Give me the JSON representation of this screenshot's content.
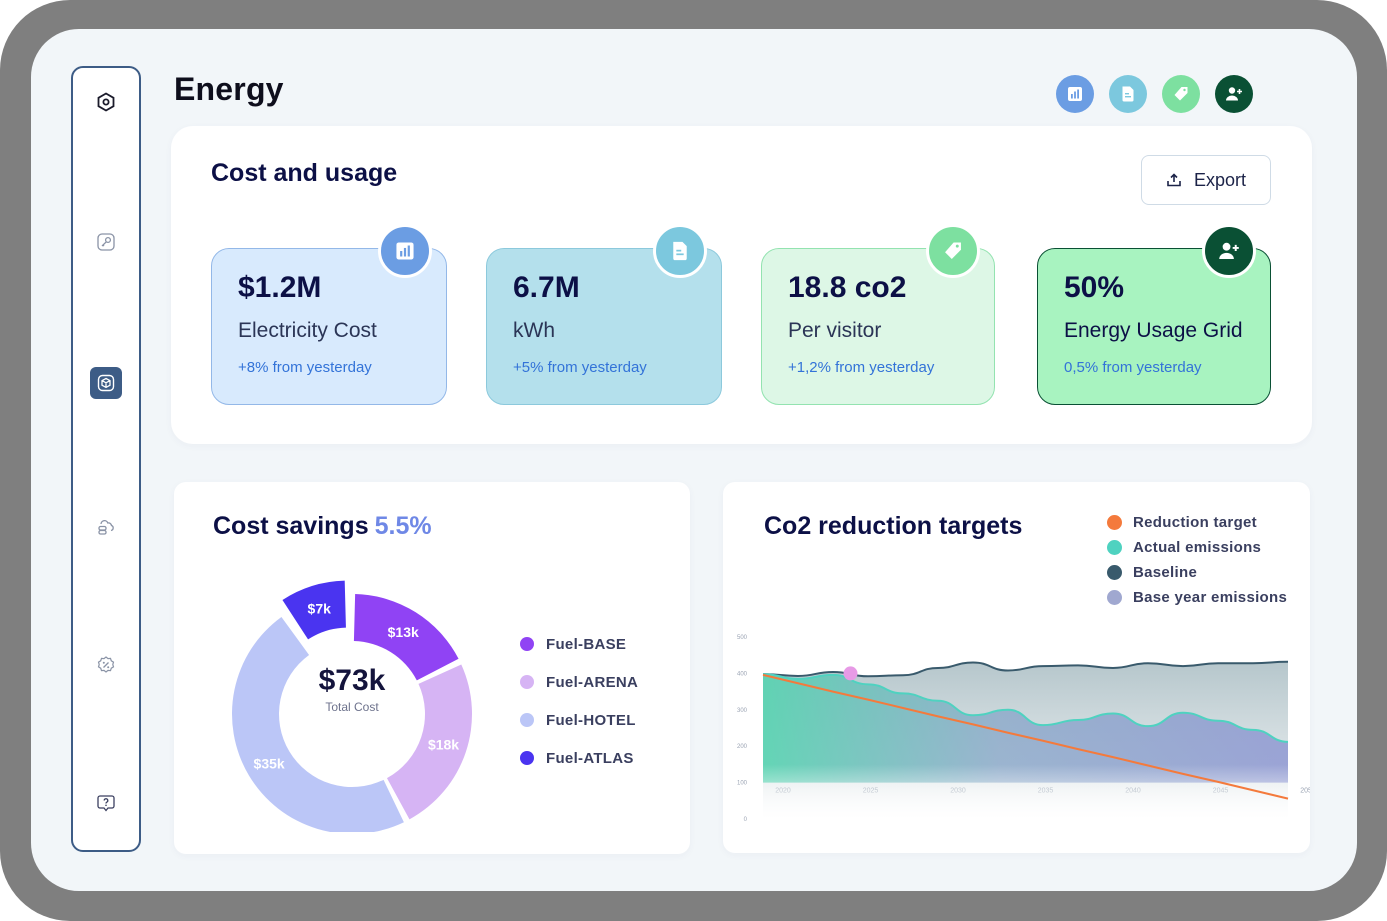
{
  "page": {
    "title": "Energy"
  },
  "sidebar": {
    "items": [
      {
        "name": "hexagon-logo-icon",
        "active": false
      },
      {
        "name": "key-icon",
        "active": false
      },
      {
        "name": "cube-icon",
        "active": true
      },
      {
        "name": "cloud-server-icon",
        "active": false
      },
      {
        "name": "percent-badge-icon",
        "active": false
      },
      {
        "name": "help-icon",
        "active": false
      }
    ]
  },
  "top_icons": [
    {
      "name": "bar-chart-icon",
      "color": "#6b9de3"
    },
    {
      "name": "document-icon",
      "color": "#7cc8de"
    },
    {
      "name": "tag-icon",
      "color": "#7de0a0"
    },
    {
      "name": "add-user-icon",
      "color": "#0a5034"
    }
  ],
  "cost_usage": {
    "title": "Cost and usage",
    "export_label": "Export",
    "cards": [
      {
        "value": "$1.2M",
        "label": "Electricity Cost",
        "delta": "+8% from yesterday",
        "bg": "#d8eafd",
        "border": "#93b8e8",
        "badge": "#6b9de3",
        "icon": "bar-chart-icon"
      },
      {
        "value": "6.7M",
        "label": "kWh",
        "delta": "+5% from yesterday",
        "bg": "#b4e0ec",
        "border": "#8cc9dc",
        "badge": "#7cc8de",
        "icon": "document-icon"
      },
      {
        "value": "18.8 co2",
        "label": "Per visitor",
        "delta": "+1,2% from yesterday",
        "bg": "#ddf7e6",
        "border": "#93e3b0",
        "badge": "#7de0a0",
        "icon": "tag-icon"
      },
      {
        "value": "50%",
        "label": "Energy Usage Grid",
        "delta": "0,5% from yesterday",
        "bg": "#a8f3c0",
        "border": "#0a5034",
        "badge": "#0a5034",
        "icon": "add-user-icon"
      }
    ]
  },
  "cost_savings": {
    "title": "Cost savings",
    "percent": "5.5%",
    "center_value": "$73k",
    "center_label": "Total Cost",
    "segments": [
      {
        "name": "Fuel-BASE",
        "label": "$13k",
        "value": 13,
        "color": "#9043f4"
      },
      {
        "name": "Fuel-ARENA",
        "label": "$18k",
        "value": 18,
        "color": "#d6b4f4"
      },
      {
        "name": "Fuel-HOTEL",
        "label": "$35k",
        "value": 35,
        "color": "#bbc6f7"
      },
      {
        "name": "Fuel-ATLAS",
        "label": "$7k",
        "value": 7,
        "color": "#4a34f0"
      }
    ]
  },
  "co2": {
    "title": "Co2 reduction targets",
    "legend": [
      {
        "name": "Reduction target",
        "color": "#f47a3c"
      },
      {
        "name": "Actual  emissions",
        "color": "#4fd2c0"
      },
      {
        "name": "Baseline",
        "color": "#395a6c"
      },
      {
        "name": "Base year emissions",
        "color": "#a0a8d0"
      }
    ]
  },
  "chart_data": {
    "type": "area",
    "title": "Co2 reduction targets",
    "x_ticks": [
      "2020",
      "2025",
      "2030",
      "2035",
      "2040",
      "2045",
      "2050"
    ],
    "y_ticks": [
      "0",
      "100",
      "200",
      "300",
      "400",
      "500"
    ],
    "ylim": [
      0,
      500
    ],
    "x": [
      2020,
      2022,
      2024,
      2026,
      2028,
      2030,
      2032,
      2034,
      2036,
      2038,
      2040,
      2042,
      2044,
      2046,
      2048,
      2050
    ],
    "series": [
      {
        "name": "Baseline",
        "values": [
          398,
          393,
          404,
          392,
          395,
          415,
          430,
          408,
          420,
          422,
          415,
          428,
          420,
          428,
          428,
          432
        ]
      },
      {
        "name": "Actual  emissions",
        "values": [
          398,
          385,
          396,
          370,
          345,
          325,
          285,
          300,
          258,
          272,
          290,
          255,
          292,
          270,
          245,
          212
        ]
      },
      {
        "name": "Reduction target",
        "values": [
          396,
          373,
          350,
          328,
          305,
          282,
          260,
          237,
          215,
          192,
          170,
          147,
          124,
          102,
          79,
          56
        ]
      }
    ],
    "highlight_point": {
      "x": 2025,
      "y": 400
    },
    "legend_position": "top-right"
  }
}
